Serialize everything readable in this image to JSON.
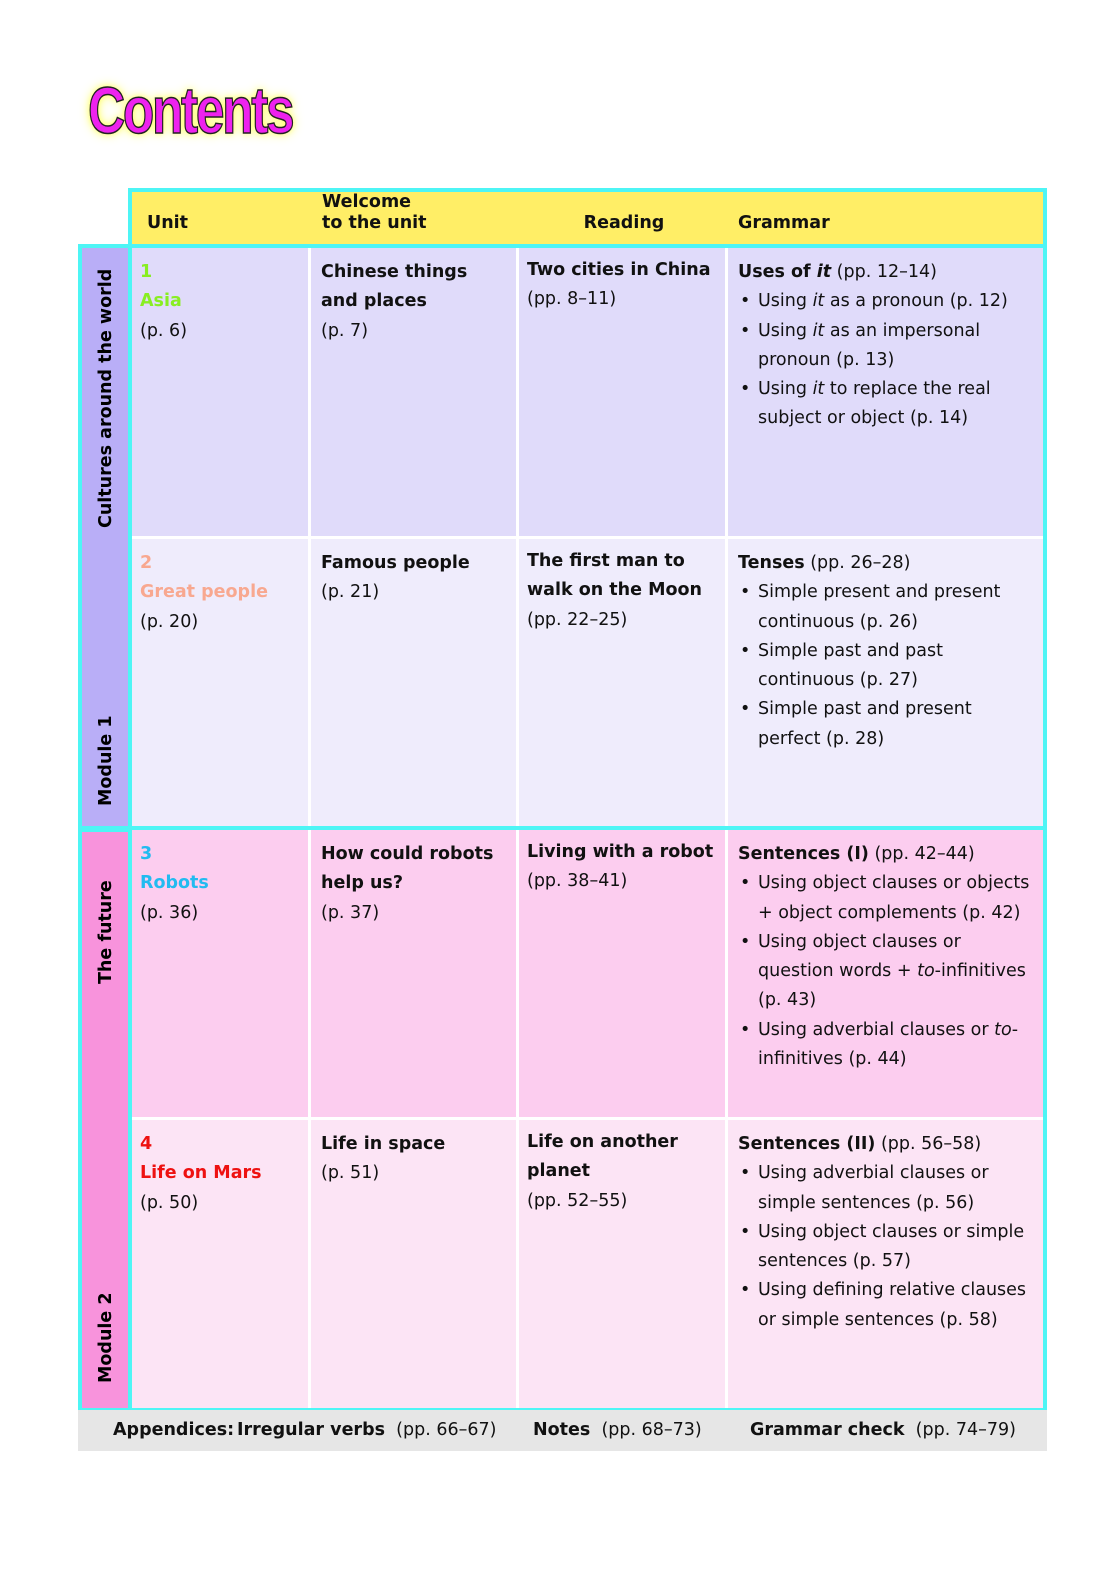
{
  "title": "Contents",
  "headers": {
    "unit": "Unit",
    "welcome_1": "Welcome",
    "welcome_2": "to the unit",
    "reading": "Reading",
    "grammar": "Grammar"
  },
  "modules": [
    {
      "label": "Module 1",
      "theme": "Cultures around the world",
      "color": "#b9aef7"
    },
    {
      "label": "Module 2",
      "theme": "The future",
      "color": "#f893dc"
    }
  ],
  "units": [
    {
      "number": "1",
      "name": "Asia",
      "page": "(p. 6)",
      "color": "#88ee22",
      "bg": "#e0dbfa",
      "welcome": [
        "Chinese things",
        "and places"
      ],
      "welcome_page": "(p. 7)",
      "reading": [
        "Two cities in China"
      ],
      "reading_page": "(pp. 8–11)",
      "grammar_title": [
        {
          "t": "Uses of ",
          "s": "b"
        },
        {
          "t": "it",
          "s": "bi"
        },
        {
          "t": " (pp. 12–14)",
          "s": ""
        }
      ],
      "grammar_items": [
        [
          {
            "t": "Using "
          },
          {
            "t": "it",
            "i": true
          },
          {
            "t": " as a pronoun (p. 12)"
          }
        ],
        [
          {
            "t": "Using "
          },
          {
            "t": "it",
            "i": true
          },
          {
            "t": " as an impersonal pronoun (p. 13)"
          }
        ],
        [
          {
            "t": "Using "
          },
          {
            "t": "it",
            "i": true
          },
          {
            "t": " to replace the real subject or object (p. 14)"
          }
        ]
      ]
    },
    {
      "number": "2",
      "name": "Great people",
      "page": "(p. 20)",
      "color": "#f8a890",
      "bg": "#efecfc",
      "welcome": [
        "Famous people"
      ],
      "welcome_page": "(p. 21)",
      "reading": [
        "The first man to",
        "walk on the Moon"
      ],
      "reading_page": "(pp. 22–25)",
      "grammar_title": [
        {
          "t": "Tenses",
          "s": "b"
        },
        {
          "t": " (pp. 26–28)",
          "s": ""
        }
      ],
      "grammar_items": [
        [
          {
            "t": "Simple present and present continuous (p. 26)"
          }
        ],
        [
          {
            "t": "Simple past and past continuous (p. 27)"
          }
        ],
        [
          {
            "t": "Simple past and present perfect (p. 28)"
          }
        ]
      ]
    },
    {
      "number": "3",
      "name": "Robots",
      "page": "(p. 36)",
      "color": "#22bbf0",
      "bg": "#fccdef",
      "welcome": [
        "How could robots",
        "help us?"
      ],
      "welcome_page": "(p. 37)",
      "reading": [
        "Living with a robot"
      ],
      "reading_page": "(pp. 38–41)",
      "grammar_title": [
        {
          "t": "Sentences (I)",
          "s": "b"
        },
        {
          "t": " (pp. 42–44)",
          "s": ""
        }
      ],
      "grammar_items": [
        [
          {
            "t": "Using object clauses or objects + object complements (p. 42)"
          }
        ],
        [
          {
            "t": "Using object clauses or question words + "
          },
          {
            "t": "to",
            "i": true
          },
          {
            "t": "-infinitives (p. 43)"
          }
        ],
        [
          {
            "t": "Using adverbial clauses or "
          },
          {
            "t": "to",
            "i": true
          },
          {
            "t": "-infinitives (p. 44)"
          }
        ]
      ]
    },
    {
      "number": "4",
      "name": "Life on Mars",
      "page": "(p. 50)",
      "color": "#ee1111",
      "bg": "#fce4f5",
      "welcome": [
        "Life in space"
      ],
      "welcome_page": "(p. 51)",
      "reading": [
        "Life on another",
        "planet"
      ],
      "reading_page": "(pp. 52–55)",
      "grammar_title": [
        {
          "t": "Sentences (II)",
          "s": "b"
        },
        {
          "t": " (pp. 56–58)",
          "s": ""
        }
      ],
      "grammar_items": [
        [
          {
            "t": "Using adverbial clauses or simple sentences (p. 56)"
          }
        ],
        [
          {
            "t": "Using object clauses or simple sentences (p. 57)"
          }
        ],
        [
          {
            "t": "Using defining relative clauses or simple sentences (p. 58)"
          }
        ]
      ]
    }
  ],
  "appendices": {
    "label": "Appendices:",
    "items": [
      {
        "name": "Irregular verbs",
        "pages": "(pp. 66–67)"
      },
      {
        "name": "Notes",
        "pages": "(pp. 68–73)"
      },
      {
        "name": "Grammar check",
        "pages": "(pp. 74–79)"
      }
    ]
  },
  "colors": {
    "border": "#4ef5f5",
    "header": "#ffee66"
  }
}
